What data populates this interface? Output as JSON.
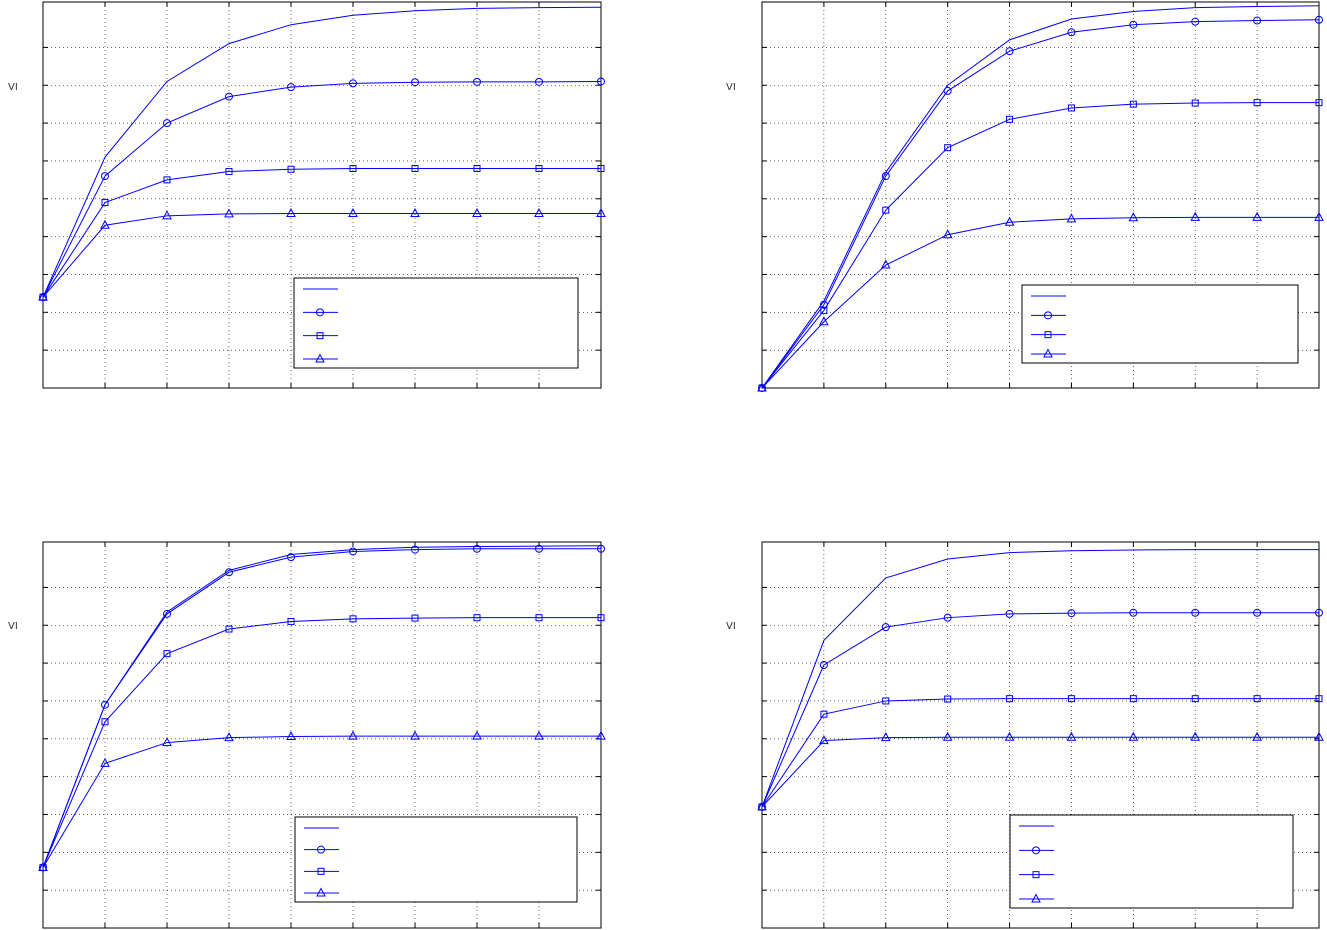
{
  "colors": {
    "series": "#0000ff",
    "axes": "#000000",
    "grid": "#000000",
    "background": "#ffffff"
  },
  "charts": [
    {
      "ylabel": "VI"
    },
    {
      "ylabel": "VI"
    },
    {
      "ylabel": "VI"
    },
    {
      "ylabel": "VI"
    }
  ],
  "chart_data": [
    {
      "type": "line",
      "grid": true,
      "legend_position": "lower-right",
      "xlim": [
        0,
        9
      ],
      "ylim": [
        0,
        10.2
      ],
      "x": [
        0,
        1,
        2,
        3,
        4,
        5,
        6,
        7,
        8,
        9
      ],
      "series": [
        {
          "marker": "none",
          "values": [
            2.4,
            6.1,
            8.1,
            9.1,
            9.6,
            9.85,
            9.97,
            10.03,
            10.05,
            10.06
          ]
        },
        {
          "marker": "circle",
          "values": [
            2.4,
            5.6,
            7.0,
            7.7,
            7.95,
            8.05,
            8.08,
            8.09,
            8.09,
            8.1
          ]
        },
        {
          "marker": "square",
          "values": [
            2.4,
            4.9,
            5.5,
            5.72,
            5.78,
            5.8,
            5.8,
            5.8,
            5.8,
            5.8
          ]
        },
        {
          "marker": "triangle",
          "values": [
            2.4,
            4.3,
            4.55,
            4.6,
            4.61,
            4.61,
            4.61,
            4.61,
            4.61,
            4.61
          ]
        }
      ]
    },
    {
      "type": "line",
      "grid": true,
      "legend_position": "lower-right",
      "xlim": [
        0,
        9
      ],
      "ylim": [
        0,
        10.2
      ],
      "x": [
        0,
        1,
        2,
        3,
        4,
        5,
        6,
        7,
        8,
        9
      ],
      "series": [
        {
          "marker": "none",
          "values": [
            0,
            2.3,
            5.7,
            8.0,
            9.2,
            9.75,
            9.95,
            10.05,
            10.08,
            10.1
          ]
        },
        {
          "marker": "circle",
          "values": [
            0,
            2.2,
            5.6,
            7.85,
            8.9,
            9.4,
            9.6,
            9.68,
            9.71,
            9.73
          ]
        },
        {
          "marker": "square",
          "values": [
            0,
            2.05,
            4.7,
            6.35,
            7.1,
            7.4,
            7.5,
            7.53,
            7.54,
            7.54
          ]
        },
        {
          "marker": "triangle",
          "values": [
            0,
            1.75,
            3.25,
            4.05,
            4.38,
            4.47,
            4.5,
            4.51,
            4.51,
            4.51
          ]
        }
      ]
    },
    {
      "type": "line",
      "grid": true,
      "legend_position": "lower-right",
      "xlim": [
        0,
        9
      ],
      "ylim": [
        0,
        10.2
      ],
      "x": [
        0,
        1,
        2,
        3,
        4,
        5,
        6,
        7,
        8,
        9
      ],
      "series": [
        {
          "marker": "none",
          "values": [
            1.6,
            5.9,
            8.35,
            9.45,
            9.87,
            10.0,
            10.06,
            10.08,
            10.09,
            10.1
          ]
        },
        {
          "marker": "circle",
          "values": [
            1.6,
            5.9,
            8.3,
            9.4,
            9.8,
            9.95,
            10.0,
            10.02,
            10.02,
            10.02
          ]
        },
        {
          "marker": "square",
          "values": [
            1.6,
            5.45,
            7.25,
            7.9,
            8.1,
            8.17,
            8.19,
            8.2,
            8.2,
            8.2
          ]
        },
        {
          "marker": "triangle",
          "values": [
            1.6,
            4.35,
            4.9,
            5.03,
            5.06,
            5.07,
            5.07,
            5.07,
            5.07,
            5.07
          ]
        }
      ]
    },
    {
      "type": "line",
      "grid": true,
      "legend_position": "lower-right",
      "xlim": [
        0,
        9
      ],
      "ylim": [
        0,
        10.2
      ],
      "x": [
        0,
        1,
        2,
        3,
        4,
        5,
        6,
        7,
        8,
        9
      ],
      "series": [
        {
          "marker": "none",
          "values": [
            3.2,
            7.6,
            9.25,
            9.75,
            9.92,
            9.97,
            9.99,
            10.0,
            10.0,
            10.0
          ]
        },
        {
          "marker": "circle",
          "values": [
            3.2,
            6.95,
            7.95,
            8.2,
            8.3,
            8.32,
            8.33,
            8.33,
            8.33,
            8.33
          ]
        },
        {
          "marker": "square",
          "values": [
            3.2,
            5.65,
            6.0,
            6.05,
            6.06,
            6.06,
            6.06,
            6.06,
            6.06,
            6.06
          ]
        },
        {
          "marker": "triangle",
          "values": [
            3.2,
            4.95,
            5.03,
            5.04,
            5.04,
            5.04,
            5.04,
            5.04,
            5.04,
            5.04
          ]
        }
      ]
    }
  ]
}
